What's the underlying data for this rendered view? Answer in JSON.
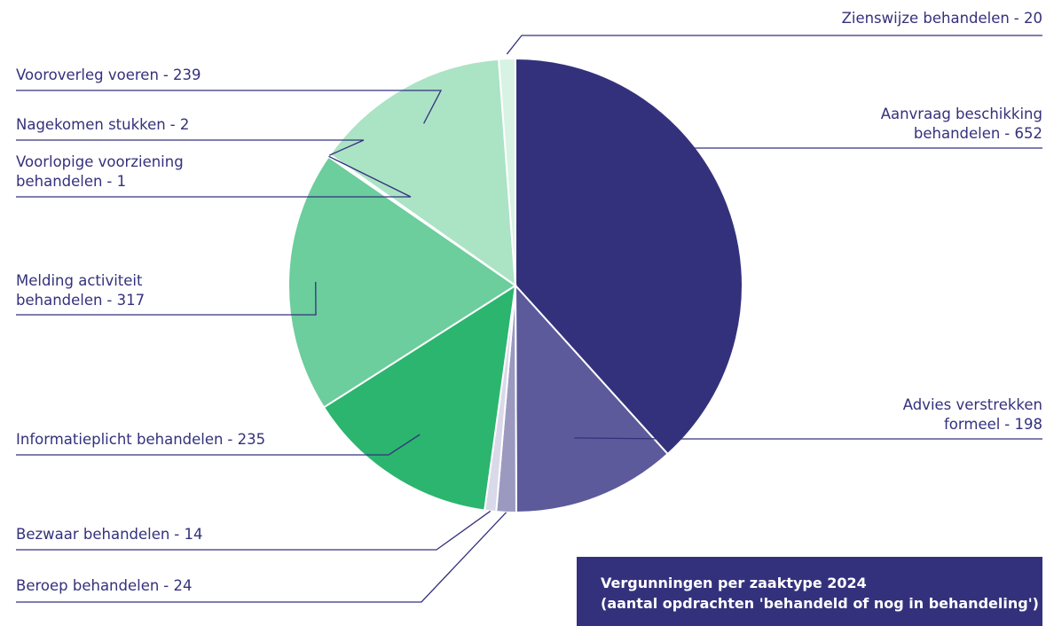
{
  "chart_data": {
    "type": "pie",
    "title": "Vergunningen per zaaktype 2024",
    "subtitle": "(aantal opdrachten 'behandeld of nog in behandeling')",
    "categories": [
      "Aanvraag beschikking behandelen",
      "Advies verstrekken formeel",
      "Beroep behandelen",
      "Bezwaar behandelen",
      "Informatieplicht behandelen",
      "Melding activiteit behandelen",
      "Voorlopige voorziening behandelen",
      "Nagekomen stukken",
      "Vooroverleg voeren",
      "Zienswijze behandelen"
    ],
    "values": [
      652,
      198,
      24,
      14,
      235,
      317,
      1,
      2,
      239,
      20
    ],
    "value_labels": [
      "- 652",
      "- 198",
      "- 24",
      "- 14",
      "- 235",
      "- 317",
      "- 1",
      "- 2",
      "- 239",
      "- 20"
    ],
    "colors": [
      "#34317c",
      "#5c5a9a",
      "#9b99c0",
      "#d9d9ea",
      "#2bb56e",
      "#6ccd9d",
      "#2a9e5f",
      "#2bb56e",
      "#abe3c5",
      "#d8f2e4"
    ]
  }
}
